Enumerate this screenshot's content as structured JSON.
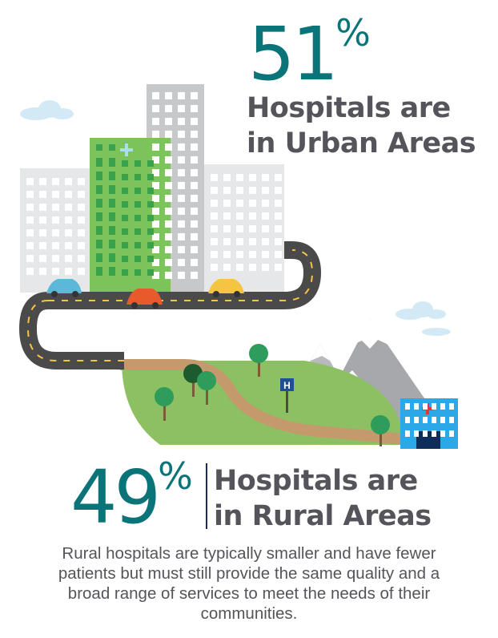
{
  "urban": {
    "value": "51",
    "unit": "%",
    "line1": "Hospitals are",
    "line2": "in Urban Areas"
  },
  "rural": {
    "value": "49",
    "unit": "%",
    "line1": "Hospitals are",
    "line2": "in Rural Areas"
  },
  "description": "Rural hospitals are typically smaller and have fewer patients but must still provide the same quality and a broad range of services to meet the needs of their communities.",
  "sign_label": "H",
  "colors": {
    "teal": "#0a7479",
    "text_gray": "#55545a",
    "road": "#4a4a4a",
    "hill_green": "#8cc063",
    "hospital_green": "#7cc35c",
    "hospital_blue": "#2aa8e8",
    "path": "#c49a6c",
    "divider": "#1a2a5a"
  }
}
